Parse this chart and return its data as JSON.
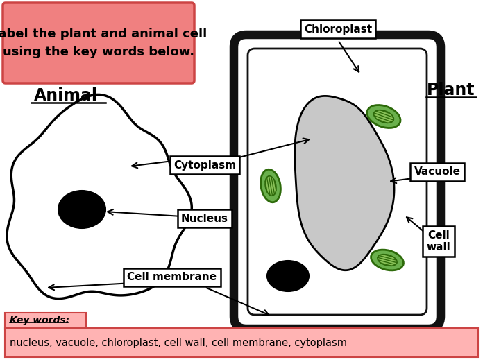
{
  "background_color": "#ffffff",
  "title_box_color": "#f08080",
  "title_box_border": "#cc4444",
  "title_text": "Label the plant and animal cell\nusing the key words below.",
  "title_fontsize": 13,
  "animal_label": "Animal",
  "plant_label": "Plant",
  "key_box_color": "#ffb3b3",
  "key_box_border": "#cc4444",
  "key_title": "Key words:",
  "key_words": "nucleus, vacuole, chloroplast, cell wall, cell membrane, cytoplasm",
  "label_cytoplasm": "Cytoplasm",
  "label_nucleus": "Nucleus",
  "label_cell_membrane": "Cell membrane",
  "label_chloroplast": "Chloroplast",
  "label_vacuole": "Vacuole",
  "label_cell_wall": "Cell\nwall",
  "cell_wall_color": "#111111",
  "chloroplast_green": "#6ab04c",
  "chloroplast_dark": "#2d6a0a",
  "chloroplast_mid": "#88c057",
  "vacuole_color": "#c8c8c8",
  "nucleus_color": "#000000"
}
